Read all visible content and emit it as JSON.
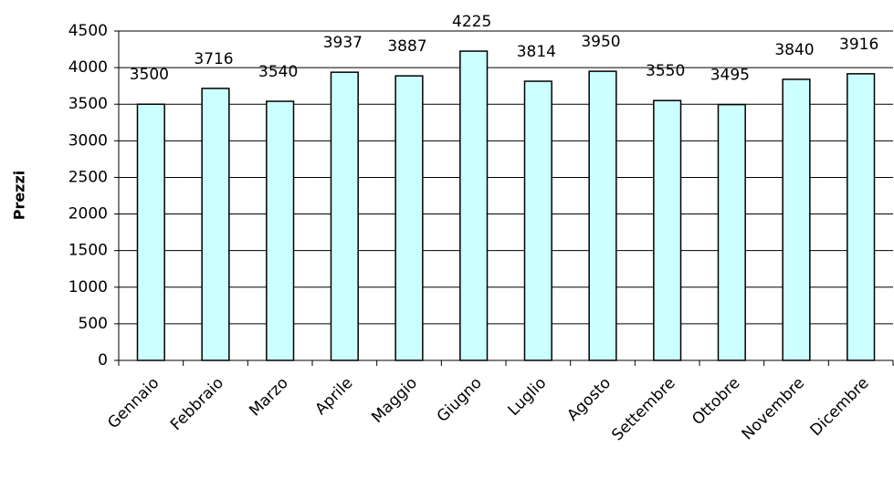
{
  "chart_data": {
    "type": "bar",
    "y_label": "Prezzi",
    "categories": [
      "Gennaio",
      "Febbraio",
      "Marzo",
      "Aprile",
      "Maggio",
      "Giugno",
      "Luglio",
      "Agosto",
      "Settembre",
      "Ottobre",
      "Novembre",
      "Dicembre"
    ],
    "values": [
      3500,
      3716,
      3540,
      3937,
      3887,
      4225,
      3814,
      3950,
      3550,
      3495,
      3840,
      3916
    ],
    "color": "#ccffff",
    "ylim": [
      0,
      4500
    ],
    "yticks": [
      0,
      500,
      1000,
      1500,
      2000,
      2500,
      3000,
      3500,
      4000,
      4500
    ],
    "grid": true
  }
}
